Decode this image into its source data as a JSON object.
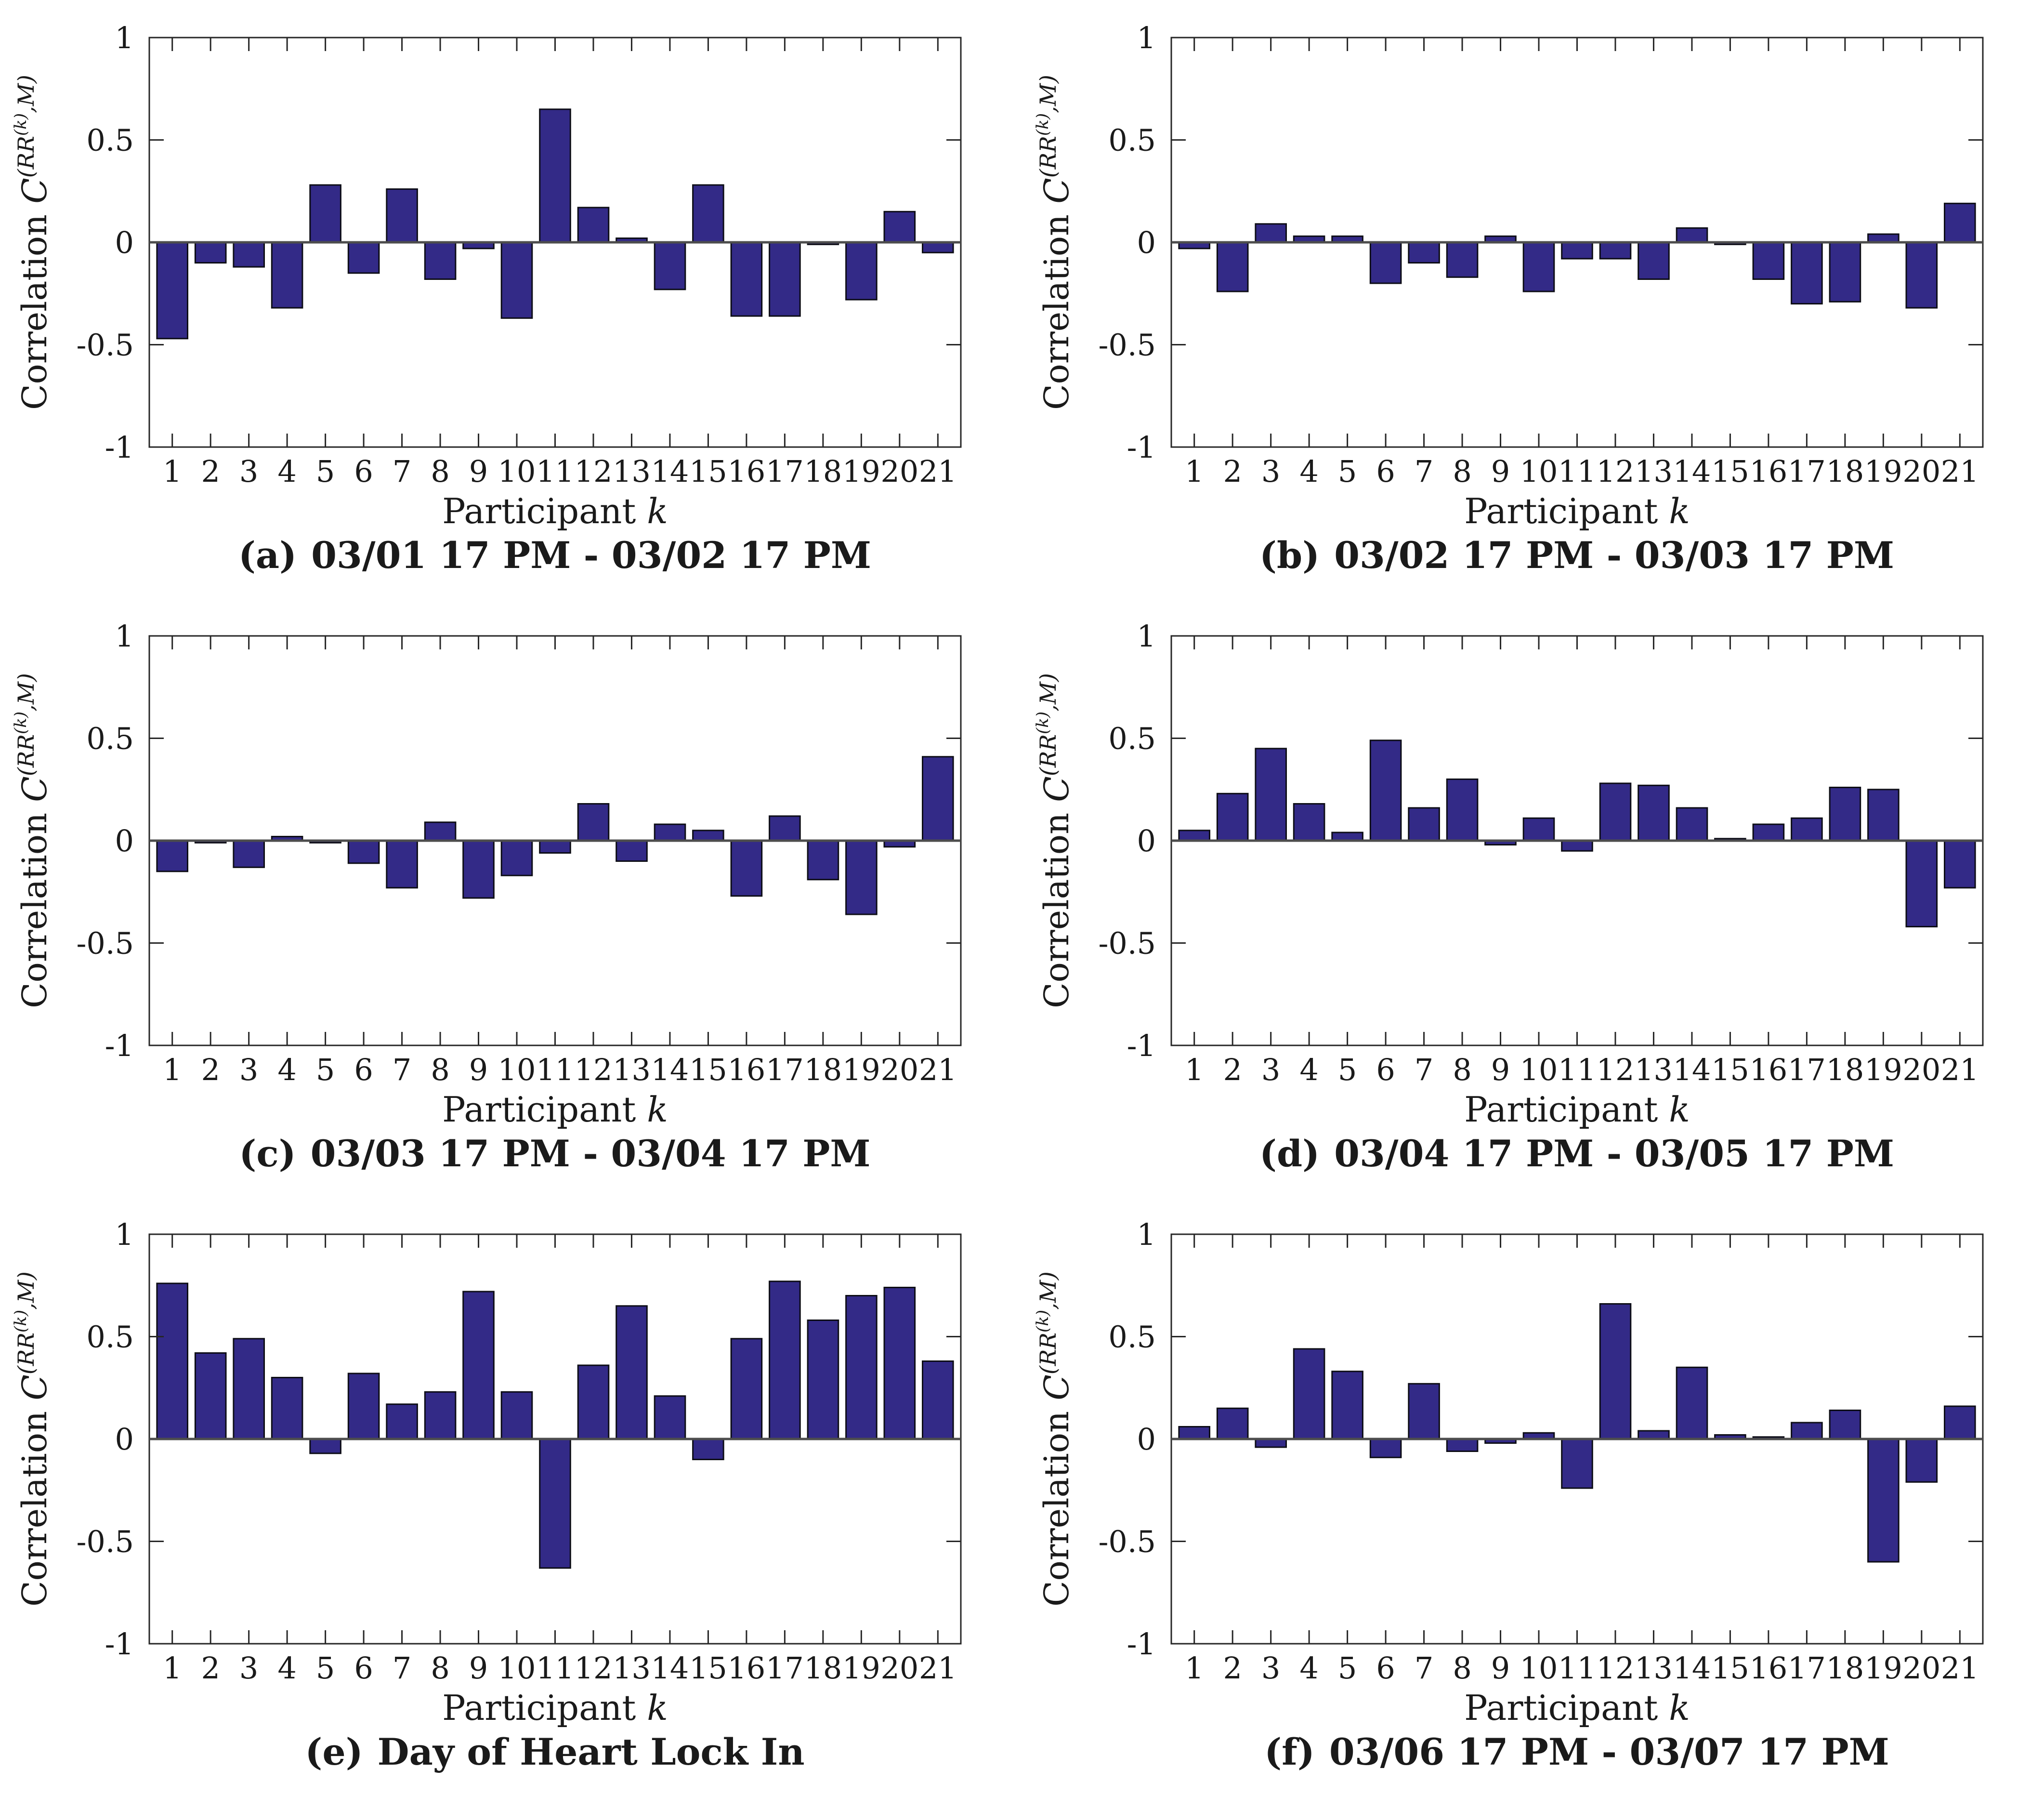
{
  "figure": {
    "background": "#ffffff",
    "bar_fill": "#332a87",
    "bar_edge": "#0d0d16",
    "axis_color": "#262626",
    "zero_line_color": "#4d4d4d",
    "text_color": "#1a1a1a"
  },
  "axis": {
    "xlabel_text": "Participant",
    "xlabel_var": "k",
    "ylabel_text": "Correlation",
    "ylabel_var": "C",
    "ylabel_sup_open": "(RR",
    "ylabel_sup_inner": "(k)",
    "ylabel_sup_close": ",M)",
    "ylim": [
      -1,
      1
    ],
    "yticks": [
      -1,
      -0.5,
      0,
      0.5,
      1
    ],
    "ytick_labels": [
      "-1",
      "-0.5",
      "0",
      "0.5",
      "1"
    ]
  },
  "chart_data": [
    {
      "type": "bar",
      "panel": "a",
      "caption_label": "(a)",
      "caption": "03/01 17 PM - 03/02 17 PM",
      "xlabel": "Participant k",
      "ylabel": "Correlation C^(RR^(k),M)",
      "ylim": [
        -1,
        1
      ],
      "yticks": [
        -1,
        -0.5,
        0,
        0.5,
        1
      ],
      "grid": false,
      "legend": null,
      "categories": [
        1,
        2,
        3,
        4,
        5,
        6,
        7,
        8,
        9,
        10,
        11,
        12,
        13,
        14,
        15,
        16,
        17,
        18,
        19,
        20,
        21
      ],
      "values": [
        -0.47,
        -0.1,
        -0.12,
        -0.32,
        0.28,
        -0.15,
        0.26,
        -0.18,
        -0.03,
        -0.37,
        0.65,
        0.17,
        0.02,
        -0.23,
        0.28,
        -0.36,
        -0.36,
        -0.01,
        -0.28,
        0.15,
        -0.05
      ]
    },
    {
      "type": "bar",
      "panel": "b",
      "caption_label": "(b)",
      "caption": "03/02 17 PM - 03/03 17 PM",
      "xlabel": "Participant k",
      "ylabel": "Correlation C^(RR^(k),M)",
      "ylim": [
        -1,
        1
      ],
      "yticks": [
        -1,
        -0.5,
        0,
        0.5,
        1
      ],
      "grid": false,
      "legend": null,
      "categories": [
        1,
        2,
        3,
        4,
        5,
        6,
        7,
        8,
        9,
        10,
        11,
        12,
        13,
        14,
        15,
        16,
        17,
        18,
        19,
        20,
        21
      ],
      "values": [
        -0.03,
        -0.24,
        0.09,
        0.03,
        0.03,
        -0.2,
        -0.1,
        -0.17,
        0.03,
        -0.24,
        -0.08,
        -0.08,
        -0.18,
        0.07,
        -0.01,
        -0.18,
        -0.3,
        -0.29,
        0.04,
        -0.32,
        0.19
      ]
    },
    {
      "type": "bar",
      "panel": "c",
      "caption_label": "(c)",
      "caption": "03/03 17 PM - 03/04 17 PM",
      "xlabel": "Participant k",
      "ylabel": "Correlation C^(RR^(k),M)",
      "ylim": [
        -1,
        1
      ],
      "yticks": [
        -1,
        -0.5,
        0,
        0.5,
        1
      ],
      "grid": false,
      "legend": null,
      "categories": [
        1,
        2,
        3,
        4,
        5,
        6,
        7,
        8,
        9,
        10,
        11,
        12,
        13,
        14,
        15,
        16,
        17,
        18,
        19,
        20,
        21
      ],
      "values": [
        -0.15,
        -0.01,
        -0.13,
        0.02,
        -0.01,
        -0.11,
        -0.23,
        0.09,
        -0.28,
        -0.17,
        -0.06,
        0.18,
        -0.1,
        0.08,
        0.05,
        -0.27,
        0.12,
        -0.19,
        -0.36,
        -0.03,
        0.41
      ]
    },
    {
      "type": "bar",
      "panel": "d",
      "caption_label": "(d)",
      "caption": "03/04 17 PM - 03/05 17 PM",
      "xlabel": "Participant k",
      "ylabel": "Correlation C^(RR^(k),M)",
      "ylim": [
        -1,
        1
      ],
      "yticks": [
        -1,
        -0.5,
        0,
        0.5,
        1
      ],
      "grid": false,
      "legend": null,
      "categories": [
        1,
        2,
        3,
        4,
        5,
        6,
        7,
        8,
        9,
        10,
        11,
        12,
        13,
        14,
        15,
        16,
        17,
        18,
        19,
        20,
        21
      ],
      "values": [
        0.05,
        0.23,
        0.45,
        0.18,
        0.04,
        0.49,
        0.16,
        0.3,
        -0.02,
        0.11,
        -0.05,
        0.28,
        0.27,
        0.16,
        0.01,
        0.08,
        0.11,
        0.26,
        0.25,
        -0.42,
        -0.23
      ]
    },
    {
      "type": "bar",
      "panel": "e",
      "caption_label": "(e)",
      "caption": "Day of Heart Lock In",
      "xlabel": "Participant k",
      "ylabel": "Correlation C^(RR^(k),M)",
      "ylim": [
        -1,
        1
      ],
      "yticks": [
        -1,
        -0.5,
        0,
        0.5,
        1
      ],
      "grid": false,
      "legend": null,
      "categories": [
        1,
        2,
        3,
        4,
        5,
        6,
        7,
        8,
        9,
        10,
        11,
        12,
        13,
        14,
        15,
        16,
        17,
        18,
        19,
        20,
        21
      ],
      "values": [
        0.76,
        0.42,
        0.49,
        0.3,
        -0.07,
        0.32,
        0.17,
        0.23,
        0.72,
        0.23,
        -0.63,
        0.36,
        0.65,
        0.21,
        -0.1,
        0.49,
        0.77,
        0.58,
        0.7,
        0.74,
        0.38
      ]
    },
    {
      "type": "bar",
      "panel": "f",
      "caption_label": "(f)",
      "caption": "03/06 17 PM - 03/07 17 PM",
      "xlabel": "Participant k",
      "ylabel": "Correlation C^(RR^(k),M)",
      "ylim": [
        -1,
        1
      ],
      "yticks": [
        -1,
        -0.5,
        0,
        0.5,
        1
      ],
      "grid": false,
      "legend": null,
      "categories": [
        1,
        2,
        3,
        4,
        5,
        6,
        7,
        8,
        9,
        10,
        11,
        12,
        13,
        14,
        15,
        16,
        17,
        18,
        19,
        20,
        21
      ],
      "values": [
        0.06,
        0.15,
        -0.04,
        0.44,
        0.33,
        -0.09,
        0.27,
        -0.06,
        -0.02,
        0.03,
        -0.24,
        0.66,
        0.04,
        0.35,
        0.02,
        0.01,
        0.08,
        0.14,
        -0.6,
        -0.21,
        0.16
      ]
    }
  ]
}
